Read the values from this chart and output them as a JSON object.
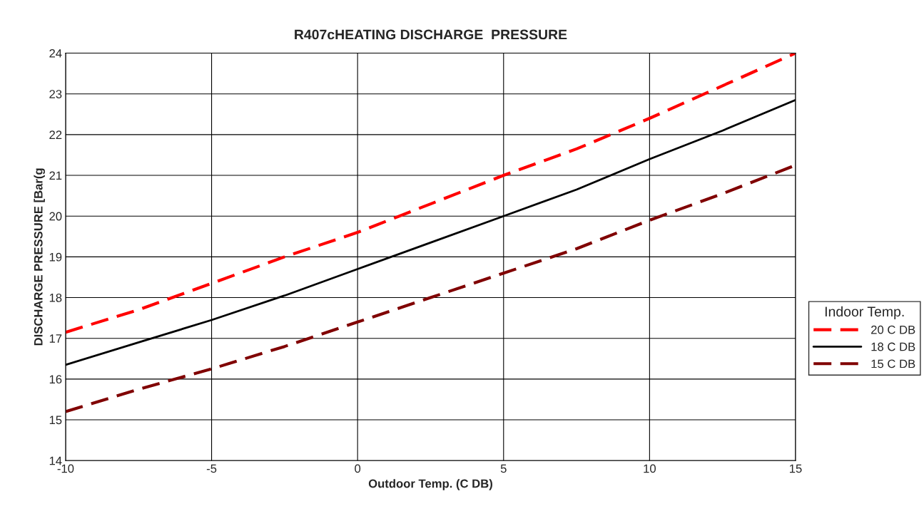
{
  "chart_data": {
    "type": "line",
    "title": "R407cHEATING DISCHARGE  PRESSURE",
    "xlabel": "Outdoor Temp. (C DB)",
    "ylabel": "DISCHARGE PRESSURE [Bar(g",
    "legend_title": "Indoor Temp.",
    "x": [
      -10,
      -7.5,
      -5,
      -2.5,
      0,
      2.5,
      5,
      7.5,
      10,
      12.5,
      15
    ],
    "series": [
      {
        "name": "20 C DB",
        "color": "#ff0000",
        "line_style": "dashed",
        "values": [
          17.15,
          17.7,
          18.35,
          19.0,
          19.6,
          20.3,
          21.0,
          21.65,
          22.4,
          23.2,
          24.0
        ]
      },
      {
        "name": "18 C DB",
        "color": "#000000",
        "line_style": "solid",
        "values": [
          16.35,
          16.9,
          17.45,
          18.05,
          18.7,
          19.35,
          20.0,
          20.65,
          21.4,
          22.1,
          22.85
        ]
      },
      {
        "name": "15 C DB",
        "color": "#800000",
        "line_style": "dashed",
        "values": [
          15.2,
          15.75,
          16.25,
          16.8,
          17.4,
          18.0,
          18.6,
          19.2,
          19.9,
          20.55,
          21.25
        ]
      }
    ],
    "xlim": [
      -10,
      15
    ],
    "xticks": [
      -10,
      -5,
      0,
      5,
      10,
      15
    ],
    "ylim": [
      14,
      24
    ],
    "yticks": [
      14,
      15,
      16,
      17,
      18,
      19,
      20,
      21,
      22,
      23,
      24
    ],
    "grid": true,
    "legend": "right",
    "marker": "none"
  }
}
